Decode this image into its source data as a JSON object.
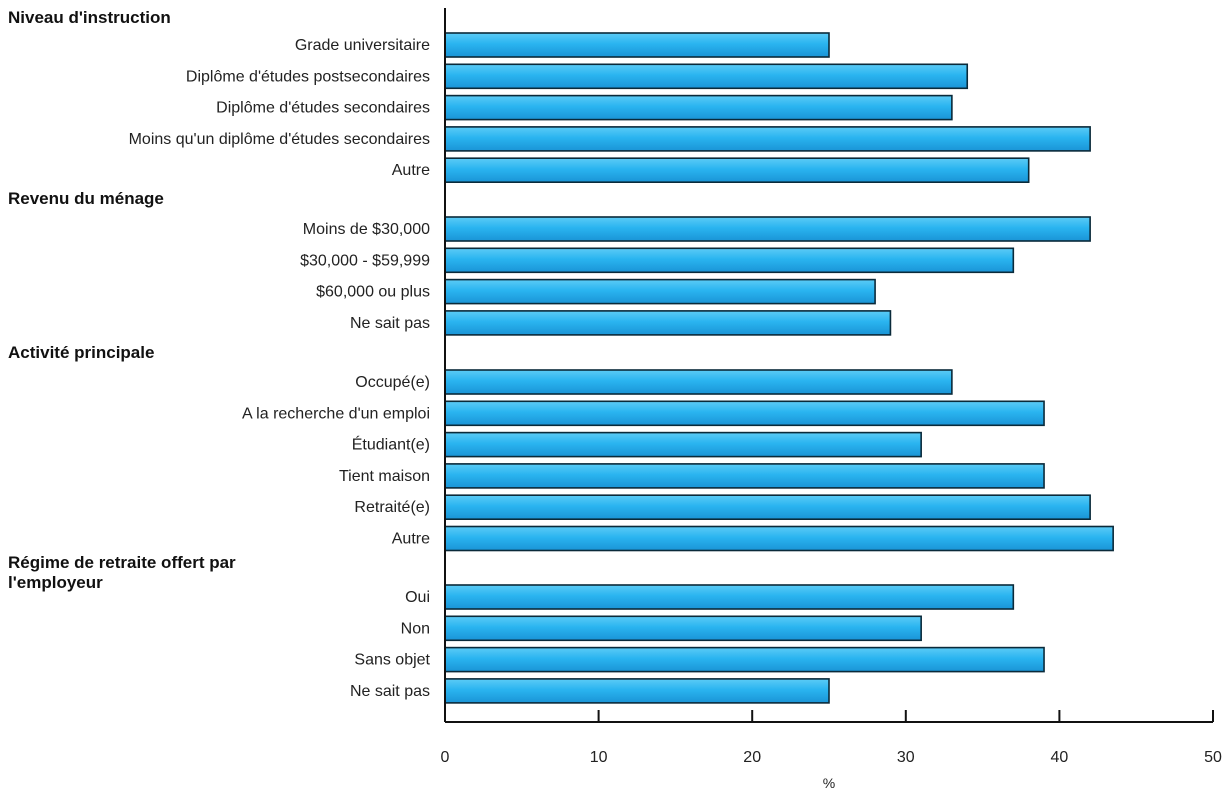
{
  "chart_data": {
    "type": "bar",
    "orientation": "horizontal",
    "xlabel": "%",
    "xlim": [
      0,
      50
    ],
    "xticks": [
      0,
      10,
      20,
      30,
      40,
      50
    ],
    "grid": false,
    "bar_color": "#2ab4f0",
    "bar_color_dark": "#1a94d6",
    "groups": [
      {
        "title": "Niveau d'instruction",
        "categories": [
          "Grade universitaire",
          "Diplôme d'études postsecondaires",
          "Diplôme d'études secondaires",
          "Moins qu'un diplôme d'études secondaires",
          "Autre"
        ],
        "values": [
          25,
          34,
          33,
          42,
          38
        ]
      },
      {
        "title": "Revenu du ménage",
        "categories": [
          "Moins de $30,000",
          "$30,000 - $59,999",
          "$60,000 ou plus",
          "Ne sait pas"
        ],
        "values": [
          42,
          37,
          28,
          29
        ]
      },
      {
        "title": "Activité principale",
        "categories": [
          "Occupé(e)",
          "A la recherche d'un emploi",
          "Étudiant(e)",
          "Tient maison",
          "Retraité(e)",
          "Autre"
        ],
        "values": [
          33,
          39,
          31,
          39,
          42,
          43.5
        ]
      },
      {
        "title": "Régime de retraite offert par l'employeur",
        "categories": [
          "Oui",
          "Non",
          "Sans objet",
          "Ne sait pas"
        ],
        "values": [
          37,
          31,
          39,
          25
        ]
      }
    ]
  }
}
